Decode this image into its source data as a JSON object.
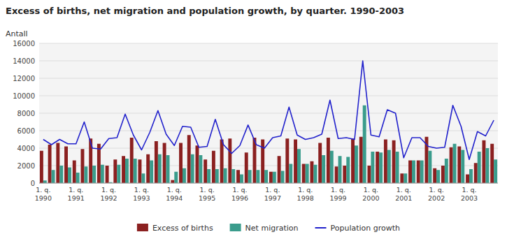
{
  "chart_data": {
    "type": "bar",
    "title": "Excess of births, net migration and population growth, by quarter. 1990-2003",
    "y_label": "Antall",
    "categories": [
      "1. q.\n1990",
      null,
      null,
      null,
      "1. q.\n1991",
      null,
      null,
      null,
      "1. q.\n1992",
      null,
      null,
      null,
      "1. q.\n1993",
      null,
      null,
      null,
      "1. q.\n1994",
      null,
      null,
      null,
      "1. q.\n1995",
      null,
      null,
      null,
      "1. q.\n1996",
      null,
      null,
      null,
      "1. q.\n1997",
      null,
      null,
      null,
      "1. q.\n1998",
      null,
      null,
      null,
      "1. q.\n1999",
      null,
      null,
      null,
      "1. q.\n2000",
      null,
      null,
      null,
      "1. q.\n2001",
      null,
      null,
      null,
      "1. q.\n2002",
      null,
      null,
      null,
      "1. q.\n2003",
      null,
      null,
      null
    ],
    "series": [
      {
        "name": "Excess of births",
        "type": "bar",
        "color": "#8B2020",
        "values": [
          3700,
          4400,
          4600,
          4200,
          2600,
          3900,
          5100,
          4500,
          2000,
          2700,
          3100,
          5200,
          2700,
          3300,
          4800,
          4600,
          350,
          4600,
          5500,
          4300,
          2700,
          3700,
          5000,
          5100,
          1500,
          3500,
          5200,
          5000,
          1300,
          3100,
          5100,
          5000,
          2200,
          2500,
          4600,
          5200,
          1900,
          2000,
          5100,
          5300,
          2000,
          3600,
          5000,
          4900,
          1100,
          2600,
          2600,
          5300,
          1700,
          2000,
          4100,
          4200,
          1000,
          2300,
          4900,
          4500
        ]
      },
      {
        "name": "Net migration",
        "type": "bar",
        "color": "#3A9C8C",
        "values": [
          300,
          1500,
          2000,
          1800,
          1200,
          1900,
          2000,
          2100,
          100,
          2100,
          2800,
          2800,
          1100,
          2600,
          3300,
          3200,
          1300,
          1700,
          3300,
          3200,
          1600,
          1600,
          1700,
          1600,
          1000,
          1500,
          1500,
          1500,
          1300,
          1400,
          2200,
          3900,
          2200,
          2100,
          3200,
          3700,
          3100,
          3000,
          4300,
          8900,
          3600,
          3500,
          3800,
          3600,
          1100,
          2600,
          2600,
          3700,
          1500,
          2800,
          4500,
          3800,
          1600,
          3600,
          4000,
          2700
        ]
      },
      {
        "name": "Population growth",
        "type": "line",
        "color": "#2222CC",
        "values": [
          5000,
          4400,
          5000,
          4500,
          4500,
          7000,
          4000,
          3900,
          5100,
          5200,
          7900,
          5500,
          3800,
          5800,
          8300,
          5600,
          4300,
          6500,
          6400,
          4100,
          4200,
          7300,
          4400,
          3400,
          4300,
          6650,
          4400,
          4000,
          5200,
          5400,
          8700,
          5500,
          5000,
          5200,
          5600,
          9500,
          5100,
          5200,
          5000,
          14000,
          5500,
          5300,
          8400,
          8000,
          2900,
          5200,
          5200,
          4200,
          4000,
          4100,
          8900,
          6500,
          2700,
          5900,
          5400,
          7200
        ]
      }
    ],
    "ylim": [
      0,
      16000
    ],
    "yticks": [
      0,
      2000,
      4000,
      6000,
      8000,
      10000,
      12000,
      14000,
      16000
    ],
    "grid": true,
    "legend": "bottom"
  }
}
